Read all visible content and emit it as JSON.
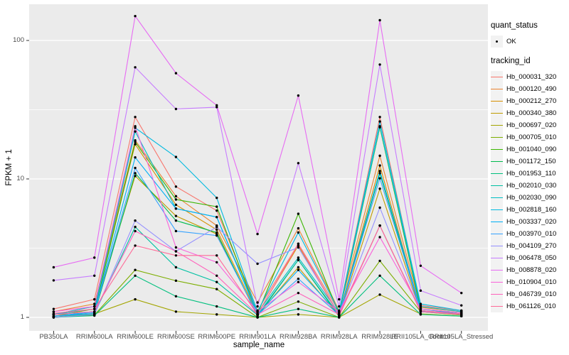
{
  "figure": {
    "background": "#FFFFFF",
    "panel_background": "#EBEBEB",
    "grid_color": "#FFFFFF",
    "point_color": "#000000",
    "tick_color": "#333333",
    "tick_label_color": "#4D4D4D"
  },
  "legend": {
    "quant_status_title": "quant_status",
    "quant_status_items": [
      {
        "label": "OK",
        "symbol": "point"
      }
    ],
    "tracking_id_title": "tracking_id"
  },
  "chart_data": {
    "type": "line",
    "title": "",
    "xlabel": "sample_name",
    "ylabel": "FPKM + 1",
    "y_scale": "log10",
    "ylim": [
      1,
      180
    ],
    "y_ticks": [
      1,
      10,
      100
    ],
    "grid": "on",
    "legend_position": "right",
    "categories": [
      "PB350LA",
      "RRIM600LA",
      "RRIM600LE",
      "RRIM600SE",
      "RRIM600PE",
      "RRIM901LA",
      "RRIM928BA",
      "RRIM928LA",
      "RRIM928LE",
      "RRII105LA_Control",
      "RRII105LA_Stressed"
    ],
    "series": [
      {
        "name": "Hb_000031_320",
        "color": "#F8766D",
        "values": [
          1.15,
          1.35,
          28,
          8.8,
          5.9,
          1.12,
          3.4,
          1.1,
          28,
          1.22,
          1.12
        ]
      },
      {
        "name": "Hb_000120_490",
        "color": "#EA8331",
        "values": [
          1.1,
          1.25,
          19,
          7.5,
          4.6,
          1.28,
          4.4,
          1.12,
          14.7,
          1.18,
          1.1
        ]
      },
      {
        "name": "Hb_000212_270",
        "color": "#D89000",
        "values": [
          1.05,
          1.2,
          17.8,
          6.5,
          4.3,
          1.06,
          3.3,
          1.05,
          12.5,
          1.12,
          1.06
        ]
      },
      {
        "name": "Hb_000340_380",
        "color": "#C09B00",
        "values": [
          1.02,
          1.15,
          10.5,
          5.4,
          4.0,
          1.03,
          2.3,
          1.02,
          8.5,
          1.1,
          1.04
        ]
      },
      {
        "name": "Hb_000697_020",
        "color": "#A3A500",
        "values": [
          1.0,
          1.06,
          1.35,
          1.1,
          1.05,
          1.0,
          1.05,
          1.0,
          1.46,
          1.06,
          1.02
        ]
      },
      {
        "name": "Hb_000705_010",
        "color": "#7CAE00",
        "values": [
          1.0,
          1.04,
          2.2,
          1.84,
          1.6,
          1.0,
          1.3,
          1.0,
          2.56,
          1.1,
          1.04
        ]
      },
      {
        "name": "Hb_001040_090",
        "color": "#39B600",
        "values": [
          1.05,
          1.1,
          18.5,
          7.1,
          6.3,
          1.06,
          5.6,
          1.06,
          23.6,
          1.15,
          1.08
        ]
      },
      {
        "name": "Hb_001172_150",
        "color": "#00BB4E",
        "values": [
          1.02,
          1.06,
          11.0,
          5.0,
          4.1,
          1.02,
          2.6,
          1.02,
          11.0,
          1.1,
          1.05
        ]
      },
      {
        "name": "Hb_001953_110",
        "color": "#00BF7D",
        "values": [
          1.0,
          1.03,
          2.0,
          1.42,
          1.2,
          1.0,
          1.15,
          1.0,
          2.0,
          1.05,
          1.02
        ]
      },
      {
        "name": "Hb_002010_030",
        "color": "#00C1A3",
        "values": [
          1.02,
          1.06,
          4.5,
          2.3,
          1.8,
          1.04,
          2.6,
          1.04,
          4.6,
          1.1,
          1.05
        ]
      },
      {
        "name": "Hb_002030_090",
        "color": "#00BFC4",
        "values": [
          1.05,
          1.15,
          22.0,
          6.1,
          5.3,
          1.08,
          2.7,
          1.08,
          24.0,
          1.2,
          1.1
        ]
      },
      {
        "name": "Hb_002818_160",
        "color": "#00BAE0",
        "values": [
          1.05,
          1.2,
          23.4,
          14.4,
          7.3,
          1.1,
          4.1,
          1.1,
          26.0,
          1.25,
          1.12
        ]
      },
      {
        "name": "Hb_003337_020",
        "color": "#00B0F6",
        "values": [
          1.02,
          1.1,
          14.3,
          6.1,
          5.3,
          1.05,
          2.2,
          1.05,
          11.4,
          1.15,
          1.06
        ]
      },
      {
        "name": "Hb_003970_010",
        "color": "#35A2FF",
        "values": [
          1.02,
          1.08,
          12.0,
          4.2,
          3.9,
          1.04,
          1.9,
          1.04,
          10.1,
          1.12,
          1.05
        ]
      },
      {
        "name": "Hb_004109_270",
        "color": "#9590FF",
        "values": [
          1.0,
          1.05,
          5.0,
          3.0,
          4.5,
          2.44,
          3.2,
          1.05,
          6.2,
          1.12,
          1.05
        ]
      },
      {
        "name": "Hb_006478_050",
        "color": "#C77CFF",
        "values": [
          1.85,
          2.0,
          64,
          32,
          33,
          1.2,
          13,
          1.2,
          67,
          1.56,
          1.22
        ]
      },
      {
        "name": "Hb_008878_020",
        "color": "#E76BF3",
        "values": [
          2.3,
          2.7,
          150,
          58,
          34,
          4.0,
          40,
          1.35,
          140,
          2.36,
          1.5
        ]
      },
      {
        "name": "Hb_010904_010",
        "color": "#FA62DB",
        "values": [
          1.1,
          1.2,
          24,
          3.2,
          2.5,
          1.1,
          1.8,
          1.1,
          3.8,
          1.15,
          1.08
        ]
      },
      {
        "name": "Hb_046739_010",
        "color": "#FF62BC",
        "values": [
          1.05,
          1.1,
          4.2,
          3.0,
          2.0,
          1.05,
          1.5,
          1.05,
          4.6,
          1.1,
          1.05
        ]
      },
      {
        "name": "Hb_061126_010",
        "color": "#FF6A98",
        "values": [
          1.07,
          1.15,
          3.3,
          2.8,
          2.8,
          1.05,
          3.4,
          1.02,
          4.6,
          1.12,
          1.06
        ]
      }
    ]
  }
}
